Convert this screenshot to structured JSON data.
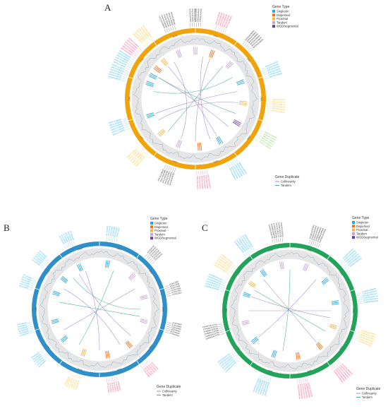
{
  "panels": [
    {
      "letter": "A",
      "cx": 0,
      "cy": 0,
      "ring_color": "#f0a30a",
      "genes": [
        {
          "angle": -72,
          "type": "Singleton",
          "label": "NPEX0110B100"
        },
        {
          "angle": -62,
          "type": "Singleton",
          "label": "NPEX0110B200"
        },
        {
          "angle": -52,
          "type": "Dispersed",
          "label": "NPEX0120B600"
        },
        {
          "angle": -40,
          "type": "Proximal",
          "label": "NPEX0210B000"
        },
        {
          "angle": -20,
          "type": "Tandem",
          "label": "NPEX0230B500"
        },
        {
          "angle": 0,
          "type": "Tandem",
          "label": "NPEX0310A500"
        },
        {
          "angle": 20,
          "type": "Dispersed",
          "label": "NPEX0320B200"
        },
        {
          "angle": 45,
          "type": "Tandem",
          "label": "NPEX0410B800"
        },
        {
          "angle": 70,
          "type": "Singleton",
          "label": "NPEX0510A000"
        },
        {
          "angle": 95,
          "type": "Proximal",
          "label": "NPEX0610B700"
        },
        {
          "angle": 120,
          "type": "WGD/segmental",
          "label": "NPEX0710B100"
        },
        {
          "angle": 150,
          "type": "Singleton",
          "label": "NPEX0810B500"
        },
        {
          "angle": 175,
          "type": "Dispersed",
          "label": "NPEX0910A800"
        },
        {
          "angle": 200,
          "type": "Tandem",
          "label": "NPEX1010B300"
        },
        {
          "angle": 225,
          "type": "Proximal",
          "label": "NPEX1110B600"
        },
        {
          "angle": 250,
          "type": "Singleton",
          "label": "NPEX1210B000"
        }
      ],
      "links": [
        {
          "a1": -60,
          "a2": 130,
          "kind": "Collinearity"
        },
        {
          "a1": -30,
          "a2": 200,
          "kind": "Collinearity"
        },
        {
          "a1": 10,
          "a2": 160,
          "kind": "Collinearity"
        },
        {
          "a1": 40,
          "a2": 220,
          "kind": "Tandem"
        },
        {
          "a1": 80,
          "a2": 250,
          "kind": "Collinearity"
        },
        {
          "a1": 110,
          "a2": 300,
          "kind": "Tandem"
        },
        {
          "a1": 150,
          "a2": 320,
          "kind": "Collinearity"
        },
        {
          "a1": -80,
          "a2": 60,
          "kind": "Tandem"
        },
        {
          "a1": 180,
          "a2": 20,
          "kind": "Collinearity"
        },
        {
          "a1": 240,
          "a2": 95,
          "kind": "Collinearity"
        }
      ]
    },
    {
      "letter": "B",
      "cx": 0,
      "cy": 0,
      "ring_color": "#2f8fc8",
      "genes": [
        {
          "angle": -70,
          "type": "Singleton",
          "label": "AT1G10000"
        },
        {
          "angle": -50,
          "type": "Singleton",
          "label": "AT1G20300"
        },
        {
          "angle": -25,
          "type": "Singleton",
          "label": "AT1G30500"
        },
        {
          "angle": 10,
          "type": "Singleton",
          "label": "AT2G10400"
        },
        {
          "angle": 45,
          "type": "Tandem",
          "label": "AT2G30700"
        },
        {
          "angle": 75,
          "type": "Tandem",
          "label": "AT3G12500"
        },
        {
          "angle": 105,
          "type": "Tandem",
          "label": "AT3G45600"
        },
        {
          "angle": 140,
          "type": "Dispersed",
          "label": "AT4G10200"
        },
        {
          "angle": 170,
          "type": "Dispersed",
          "label": "AT4G34500"
        },
        {
          "angle": 200,
          "type": "Proximal",
          "label": "AT5G10100"
        },
        {
          "angle": 230,
          "type": "Singleton",
          "label": "AT5G45000"
        },
        {
          "angle": 255,
          "type": "Singleton",
          "label": "AT5G60100"
        }
      ],
      "links": [
        {
          "a1": -60,
          "a2": 150,
          "kind": "Collinearity"
        },
        {
          "a1": -20,
          "a2": 180,
          "kind": "Collinearity"
        },
        {
          "a1": 20,
          "a2": 210,
          "kind": "Tandem"
        },
        {
          "a1": 60,
          "a2": 240,
          "kind": "Collinearity"
        },
        {
          "a1": 100,
          "a2": 280,
          "kind": "Tandem"
        },
        {
          "a1": 130,
          "a2": 330,
          "kind": "Collinearity"
        },
        {
          "a1": -40,
          "a2": 90,
          "kind": "Tandem"
        }
      ]
    },
    {
      "letter": "C",
      "cx": 0,
      "cy": 0,
      "ring_color": "#22a35a",
      "genes": [
        {
          "angle": -70,
          "type": "Singleton",
          "label": "Zm00001d010100"
        },
        {
          "angle": -55,
          "type": "Proximal",
          "label": "Zm00001d010200"
        },
        {
          "angle": -35,
          "type": "Singleton",
          "label": "Zm00001d020500"
        },
        {
          "angle": -10,
          "type": "Tandem",
          "label": "Zm00001d030700"
        },
        {
          "angle": 20,
          "type": "Tandem",
          "label": "Zm00001d040400"
        },
        {
          "angle": 50,
          "type": "Singleton",
          "label": "Zm00001d050600"
        },
        {
          "angle": 80,
          "type": "Singleton",
          "label": "Zm00001d060200"
        },
        {
          "angle": 110,
          "type": "Proximal",
          "label": "Zm00001d070900"
        },
        {
          "angle": 140,
          "type": "Dispersed",
          "label": "Zm00001d080800"
        },
        {
          "angle": 170,
          "type": "Dispersed",
          "label": "Zm00001d090300"
        },
        {
          "angle": 200,
          "type": "Singleton",
          "label": "Zm00001d100500"
        },
        {
          "angle": 230,
          "type": "Singleton",
          "label": "Zm00001d110100"
        },
        {
          "angle": 255,
          "type": "Tandem",
          "label": "Zm00001d120700"
        }
      ],
      "links": [
        {
          "a1": -40,
          "a2": 140,
          "kind": "Collinearity"
        },
        {
          "a1": 0,
          "a2": 190,
          "kind": "Tandem"
        },
        {
          "a1": 40,
          "a2": 230,
          "kind": "Collinearity"
        },
        {
          "a1": 90,
          "a2": 270,
          "kind": "Collinearity"
        },
        {
          "a1": 120,
          "a2": 300,
          "kind": "Tandem"
        },
        {
          "a1": -70,
          "a2": 100,
          "kind": "Collinearity"
        }
      ]
    }
  ],
  "legend": {
    "gene_type_title": "Gene Type",
    "gene_types": [
      {
        "name": "Singleton",
        "color": "#26a9e0"
      },
      {
        "name": "Dispersed",
        "color": "#f0701e"
      },
      {
        "name": "Proximal",
        "color": "#f5b342"
      },
      {
        "name": "Tandem",
        "color": "#c6a4d8"
      },
      {
        "name": "WGD/segmental",
        "color": "#6a3d9a"
      }
    ],
    "dup_title": "Gene Duplicate",
    "dup_types": [
      {
        "name": "Collinearity",
        "color": "#9b7fc1"
      },
      {
        "name": "Tandem",
        "color": "#3aa887"
      }
    ]
  },
  "label_colors": {
    "Singleton": "#2fb5e6",
    "Dispersed": "#e84c86",
    "Proximal": "#f2c33a",
    "Tandem": "#333333",
    "WGD/segmental": "#8ac96a"
  }
}
